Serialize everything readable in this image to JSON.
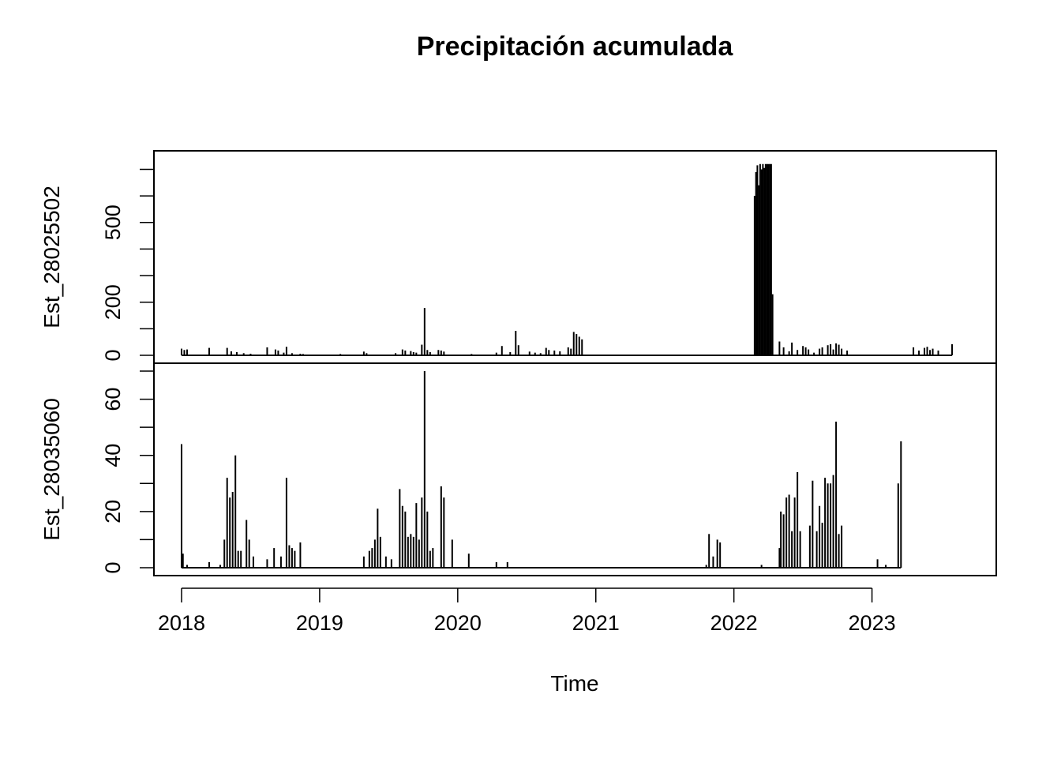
{
  "chart_data": {
    "type": "line",
    "title": "Precipitación acumulada",
    "xlabel": "Time",
    "x_ticks": [
      "2018",
      "2019",
      "2020",
      "2021",
      "2022",
      "2023"
    ],
    "x_tick_values": [
      2018,
      2019,
      2020,
      2021,
      2022,
      2023
    ],
    "xlim": [
      2017.8,
      2023.9
    ],
    "line_color": "#000000",
    "panels": [
      {
        "ylabel": "Est_28025502",
        "ylim": [
          0,
          740
        ],
        "y_ticks": [
          0,
          200,
          500
        ],
        "y_minor_ticks": [
          0,
          100,
          200,
          300,
          400,
          500,
          600,
          700
        ],
        "series": [
          [
            2018.0,
            25
          ],
          [
            2018.02,
            20
          ],
          [
            2018.04,
            22
          ],
          [
            2018.2,
            28
          ],
          [
            2018.33,
            28
          ],
          [
            2018.36,
            15
          ],
          [
            2018.4,
            12
          ],
          [
            2018.45,
            8
          ],
          [
            2018.5,
            6
          ],
          [
            2018.62,
            30
          ],
          [
            2018.68,
            22
          ],
          [
            2018.7,
            18
          ],
          [
            2018.74,
            10
          ],
          [
            2018.76,
            32
          ],
          [
            2018.8,
            8
          ],
          [
            2018.86,
            6
          ],
          [
            2018.88,
            5
          ],
          [
            2019.15,
            5
          ],
          [
            2019.32,
            14
          ],
          [
            2019.34,
            8
          ],
          [
            2019.55,
            8
          ],
          [
            2019.6,
            22
          ],
          [
            2019.62,
            18
          ],
          [
            2019.66,
            16
          ],
          [
            2019.68,
            12
          ],
          [
            2019.7,
            10
          ],
          [
            2019.74,
            40
          ],
          [
            2019.76,
            178
          ],
          [
            2019.78,
            20
          ],
          [
            2019.8,
            12
          ],
          [
            2019.86,
            20
          ],
          [
            2019.88,
            18
          ],
          [
            2019.9,
            14
          ],
          [
            2020.1,
            5
          ],
          [
            2020.28,
            10
          ],
          [
            2020.32,
            35
          ],
          [
            2020.38,
            12
          ],
          [
            2020.42,
            92
          ],
          [
            2020.44,
            38
          ],
          [
            2020.52,
            14
          ],
          [
            2020.56,
            10
          ],
          [
            2020.6,
            8
          ],
          [
            2020.64,
            28
          ],
          [
            2020.66,
            20
          ],
          [
            2020.7,
            18
          ],
          [
            2020.74,
            15
          ],
          [
            2020.8,
            30
          ],
          [
            2020.82,
            25
          ],
          [
            2020.84,
            88
          ],
          [
            2020.86,
            80
          ],
          [
            2020.88,
            70
          ],
          [
            2020.9,
            60
          ],
          [
            2022.15,
            600
          ],
          [
            2022.16,
            690
          ],
          [
            2022.17,
            715
          ],
          [
            2022.18,
            640
          ],
          [
            2022.19,
            720
          ],
          [
            2022.2,
            700
          ],
          [
            2022.21,
            720
          ],
          [
            2022.22,
            705
          ],
          [
            2022.23,
            720
          ],
          [
            2022.24,
            720
          ],
          [
            2022.25,
            720
          ],
          [
            2022.26,
            720
          ],
          [
            2022.27,
            720
          ],
          [
            2022.28,
            230
          ],
          [
            2022.33,
            52
          ],
          [
            2022.36,
            30
          ],
          [
            2022.4,
            15
          ],
          [
            2022.42,
            48
          ],
          [
            2022.46,
            20
          ],
          [
            2022.5,
            35
          ],
          [
            2022.52,
            30
          ],
          [
            2022.54,
            22
          ],
          [
            2022.58,
            10
          ],
          [
            2022.62,
            25
          ],
          [
            2022.64,
            30
          ],
          [
            2022.68,
            38
          ],
          [
            2022.7,
            42
          ],
          [
            2022.72,
            22
          ],
          [
            2022.74,
            45
          ],
          [
            2022.76,
            40
          ],
          [
            2022.78,
            25
          ],
          [
            2022.82,
            18
          ],
          [
            2023.3,
            30
          ],
          [
            2023.34,
            18
          ],
          [
            2023.38,
            28
          ],
          [
            2023.4,
            32
          ],
          [
            2023.42,
            20
          ],
          [
            2023.44,
            25
          ],
          [
            2023.48,
            18
          ],
          [
            2023.58,
            42
          ]
        ]
      },
      {
        "ylabel": "Est_28035060",
        "ylim": [
          0,
          70
        ],
        "y_ticks": [
          0,
          20,
          40,
          60
        ],
        "y_minor_ticks": [
          0,
          10,
          20,
          30,
          40,
          50,
          60,
          70
        ],
        "series": [
          [
            2018.0,
            44
          ],
          [
            2018.01,
            5
          ],
          [
            2018.04,
            1
          ],
          [
            2018.2,
            2
          ],
          [
            2018.28,
            1
          ],
          [
            2018.31,
            10
          ],
          [
            2018.33,
            32
          ],
          [
            2018.35,
            25
          ],
          [
            2018.37,
            27
          ],
          [
            2018.39,
            40
          ],
          [
            2018.41,
            6
          ],
          [
            2018.43,
            6
          ],
          [
            2018.47,
            17
          ],
          [
            2018.49,
            10
          ],
          [
            2018.52,
            4
          ],
          [
            2018.62,
            3
          ],
          [
            2018.67,
            7
          ],
          [
            2018.72,
            4
          ],
          [
            2018.76,
            32
          ],
          [
            2018.78,
            8
          ],
          [
            2018.8,
            7
          ],
          [
            2018.82,
            6
          ],
          [
            2018.86,
            9
          ],
          [
            2019.32,
            4
          ],
          [
            2019.36,
            6
          ],
          [
            2019.38,
            7
          ],
          [
            2019.4,
            10
          ],
          [
            2019.42,
            21
          ],
          [
            2019.44,
            11
          ],
          [
            2019.48,
            4
          ],
          [
            2019.52,
            3
          ],
          [
            2019.58,
            28
          ],
          [
            2019.6,
            22
          ],
          [
            2019.62,
            20
          ],
          [
            2019.64,
            11
          ],
          [
            2019.66,
            12
          ],
          [
            2019.68,
            11
          ],
          [
            2019.7,
            23
          ],
          [
            2019.72,
            10
          ],
          [
            2019.74,
            25
          ],
          [
            2019.76,
            70
          ],
          [
            2019.78,
            20
          ],
          [
            2019.8,
            6
          ],
          [
            2019.82,
            7
          ],
          [
            2019.88,
            29
          ],
          [
            2019.9,
            25
          ],
          [
            2019.96,
            10
          ],
          [
            2020.08,
            5
          ],
          [
            2020.28,
            2
          ],
          [
            2020.36,
            2
          ],
          [
            2021.8,
            1
          ],
          [
            2021.82,
            12
          ],
          [
            2021.85,
            4
          ],
          [
            2021.88,
            10
          ],
          [
            2021.9,
            9
          ],
          [
            2022.2,
            1
          ],
          [
            2022.33,
            7
          ],
          [
            2022.34,
            20
          ],
          [
            2022.36,
            19
          ],
          [
            2022.38,
            25
          ],
          [
            2022.4,
            26
          ],
          [
            2022.42,
            13
          ],
          [
            2022.44,
            25
          ],
          [
            2022.46,
            34
          ],
          [
            2022.48,
            13
          ],
          [
            2022.55,
            15
          ],
          [
            2022.57,
            31
          ],
          [
            2022.6,
            13
          ],
          [
            2022.62,
            22
          ],
          [
            2022.64,
            16
          ],
          [
            2022.66,
            32
          ],
          [
            2022.68,
            30
          ],
          [
            2022.7,
            30
          ],
          [
            2022.72,
            33
          ],
          [
            2022.74,
            52
          ],
          [
            2022.76,
            12
          ],
          [
            2022.78,
            15
          ],
          [
            2023.04,
            3
          ],
          [
            2023.1,
            1
          ],
          [
            2023.19,
            30
          ],
          [
            2023.21,
            45
          ]
        ]
      }
    ]
  }
}
